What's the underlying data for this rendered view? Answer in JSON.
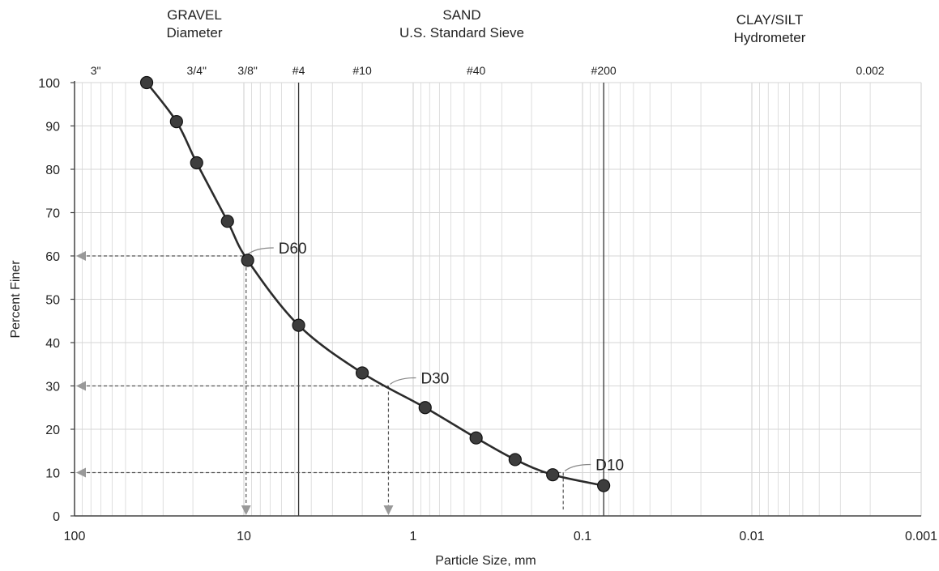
{
  "header": {
    "gravel": "GRAVEL",
    "gravel_sub": "Diameter",
    "sand": "SAND",
    "sand_sub": "U.S. Standard Sieve",
    "clay": "CLAY/SILT",
    "clay_sub": "Hydrometer"
  },
  "chart_data": {
    "type": "line",
    "xlabel": "Particle Size, mm",
    "ylabel": "Percent Finer",
    "x_scale": "log",
    "x_reversed": true,
    "xlim": [
      100,
      0.001
    ],
    "ylim": [
      0,
      100
    ],
    "grid": true,
    "x_ticks": [
      {
        "value": 100,
        "label": "100"
      },
      {
        "value": 10,
        "label": "10"
      },
      {
        "value": 1,
        "label": "1"
      },
      {
        "value": 0.1,
        "label": "0.1"
      },
      {
        "value": 0.01,
        "label": "0.01"
      },
      {
        "value": 0.001,
        "label": "0.001"
      }
    ],
    "y_ticks": [
      0,
      10,
      20,
      30,
      40,
      50,
      60,
      70,
      80,
      90,
      100
    ],
    "sieves": [
      {
        "label": "3\"",
        "size": 75
      },
      {
        "label": "3/4\"",
        "size": 19
      },
      {
        "label": "3/8\"",
        "size": 9.5
      },
      {
        "label": "#4",
        "size": 4.75,
        "line": true
      },
      {
        "label": "#10",
        "size": 2.0
      },
      {
        "label": "#40",
        "size": 0.425
      },
      {
        "label": "#200",
        "size": 0.075,
        "line": true
      },
      {
        "label": "0.002",
        "size": 0.002
      }
    ],
    "series": [
      {
        "x": [
          37.5,
          25,
          19,
          12.5,
          9.5,
          4.75,
          2.0,
          0.85,
          0.425,
          0.25,
          0.15,
          0.075
        ],
        "y": [
          100,
          91,
          81.5,
          68,
          59,
          44,
          33,
          25,
          18,
          13,
          9.5,
          7
        ]
      }
    ],
    "annotations": [
      {
        "label": "D60",
        "x": 9.7,
        "y": 60
      },
      {
        "label": "D30",
        "x": 1.4,
        "y": 30
      },
      {
        "label": "D10",
        "x": 0.13,
        "y": 10
      }
    ],
    "colors": {
      "curve": "#2b2b2b",
      "marker": "#3d3d3d",
      "guide": "#555555",
      "grid": "#d6d6d6"
    }
  }
}
